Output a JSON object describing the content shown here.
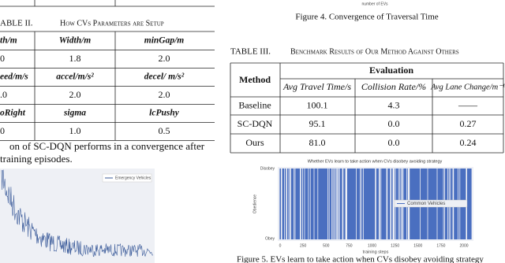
{
  "top_fragment": {
    "axis_label": "number of EVs",
    "caption": "Figure 4.   Convergence of Traversal Time"
  },
  "table2": {
    "label": "ABLE II.",
    "title": "How CVs Parameters are Setup",
    "rows": [
      [
        "th/m",
        "Width/m",
        "minGap/m"
      ],
      [
        "0",
        "1.8",
        "2.0"
      ],
      [
        "eed/m/s",
        "accel/m/s²",
        "decel/ m/s²"
      ],
      [
        ".0",
        "2.0",
        "2.0"
      ],
      [
        "oRight",
        "sigma",
        "lcPushy"
      ],
      [
        "0",
        "1.0",
        "0.5"
      ]
    ]
  },
  "body_text": [
    "on of SC-DQN performs in a convergence after",
    "training episodes."
  ],
  "figure3": {
    "legend": "Emergency Vehicles"
  },
  "table3": {
    "label": "TABLE III.",
    "title": "Benchmark Results of Our Method Against Others",
    "method": "Method",
    "evaluation": "Evaluation",
    "columns": [
      "Avg Travel Time/s",
      "Collision Rate/%",
      "Avg Lane Change/m⁻¹"
    ],
    "rows": [
      [
        "Baseline",
        "100.1",
        "4.3",
        "——"
      ],
      [
        "SC-DQN",
        "95.1",
        "0.0",
        "0.27"
      ],
      [
        "Ours",
        "81.0",
        "0.0",
        "0.24"
      ]
    ]
  },
  "figure5": {
    "title": "Whether EVs learn to take action when CVs disobey avoiding strategy",
    "y_labels": [
      "Disobey",
      "Obey"
    ],
    "y_axis": "Obedience",
    "legend": "Common Vehicles",
    "x_ticks": [
      "0",
      "250",
      "500",
      "750",
      "1000",
      "1250",
      "1500",
      "1750",
      "2000"
    ],
    "x_axis": "training steps",
    "caption": "Figure 5.   EVs learn to take action when CVs disobey avoiding strategy"
  }
}
